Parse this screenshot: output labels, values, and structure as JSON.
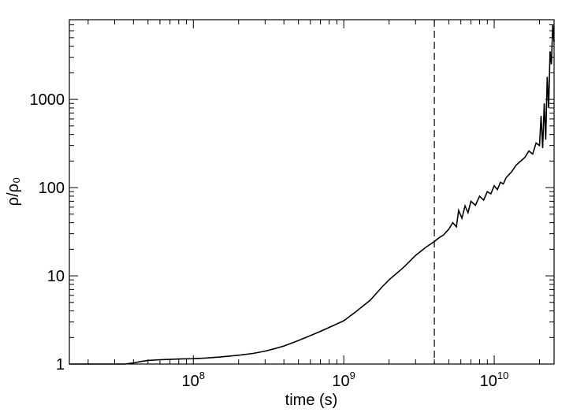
{
  "chart_data": {
    "type": "line",
    "title": "",
    "xlabel": "time (s)",
    "ylabel": "ρ/ρ₀",
    "x_scale": "log",
    "y_scale": "log",
    "xlim": [
      15000000.0,
      25000000000.0
    ],
    "ylim": [
      1,
      8000
    ],
    "grid": false,
    "legend": "none",
    "line_color": "#000000",
    "x_ticks": [
      {
        "base": "10",
        "exp": "8"
      },
      {
        "base": "10",
        "exp": "9"
      },
      {
        "base": "10",
        "exp": "10"
      }
    ],
    "y_ticks": [
      "1",
      "10",
      "100",
      "1000"
    ],
    "vline_x": 4000000000.0,
    "series": [
      {
        "x": [
          15000000.0,
          20000000.0,
          25000000.0,
          30000000.0,
          35000000.0,
          40000000.0,
          45000000.0,
          50000000.0,
          60000000.0,
          70000000.0,
          80000000.0,
          100000000.0,
          120000000.0,
          150000000.0,
          200000000.0,
          250000000.0,
          300000000.0,
          350000000.0,
          400000000.0,
          500000000.0,
          600000000.0,
          700000000.0,
          800000000.0,
          900000000.0,
          1000000000.0,
          1200000000.0,
          1500000000.0,
          1800000000.0,
          2000000000.0,
          2500000000.0,
          3000000000.0,
          3500000000.0,
          4000000000.0,
          4300000000.0,
          4600000000.0,
          5000000000.0,
          5300000000.0,
          5600000000.0,
          5800000000.0,
          6100000000.0,
          6400000000.0,
          6700000000.0,
          7000000000.0,
          7500000000.0,
          8000000000.0,
          8500000000.0,
          9000000000.0,
          9500000000.0,
          10000000000.0,
          10500000000.0,
          11000000000.0,
          11500000000.0,
          12000000000.0,
          13000000000.0,
          14000000000.0,
          15000000000.0,
          16000000000.0,
          17000000000.0,
          18000000000.0,
          19000000000.0,
          20000000000.0,
          20500000000.0,
          21000000000.0,
          21500000000.0,
          22000000000.0,
          22500000000.0,
          23000000000.0,
          23500000000.0,
          24000000000.0,
          24500000000.0,
          25000000000.0
        ],
        "y": [
          1.0,
          1.0,
          0.99,
          0.99,
          1.0,
          1.03,
          1.07,
          1.1,
          1.12,
          1.13,
          1.14,
          1.15,
          1.17,
          1.2,
          1.26,
          1.32,
          1.4,
          1.5,
          1.6,
          1.85,
          2.1,
          2.35,
          2.6,
          2.85,
          3.1,
          3.9,
          5.3,
          7.5,
          9.0,
          12.5,
          17.0,
          21.0,
          24.5,
          27.0,
          29.0,
          34.0,
          40.0,
          36.0,
          55.0,
          45.0,
          62.0,
          52.0,
          70.0,
          63.0,
          80.0,
          72.0,
          90.0,
          85.0,
          105.0,
          95.0,
          115.0,
          110.0,
          130.0,
          150.0,
          180.0,
          200.0,
          220.0,
          260.0,
          240.0,
          320.0,
          300.0,
          650.0,
          280.0,
          900.0,
          350.0,
          1800.0,
          800.0,
          3500.0,
          2500.0,
          7000.0,
          4500.0
        ]
      }
    ]
  }
}
